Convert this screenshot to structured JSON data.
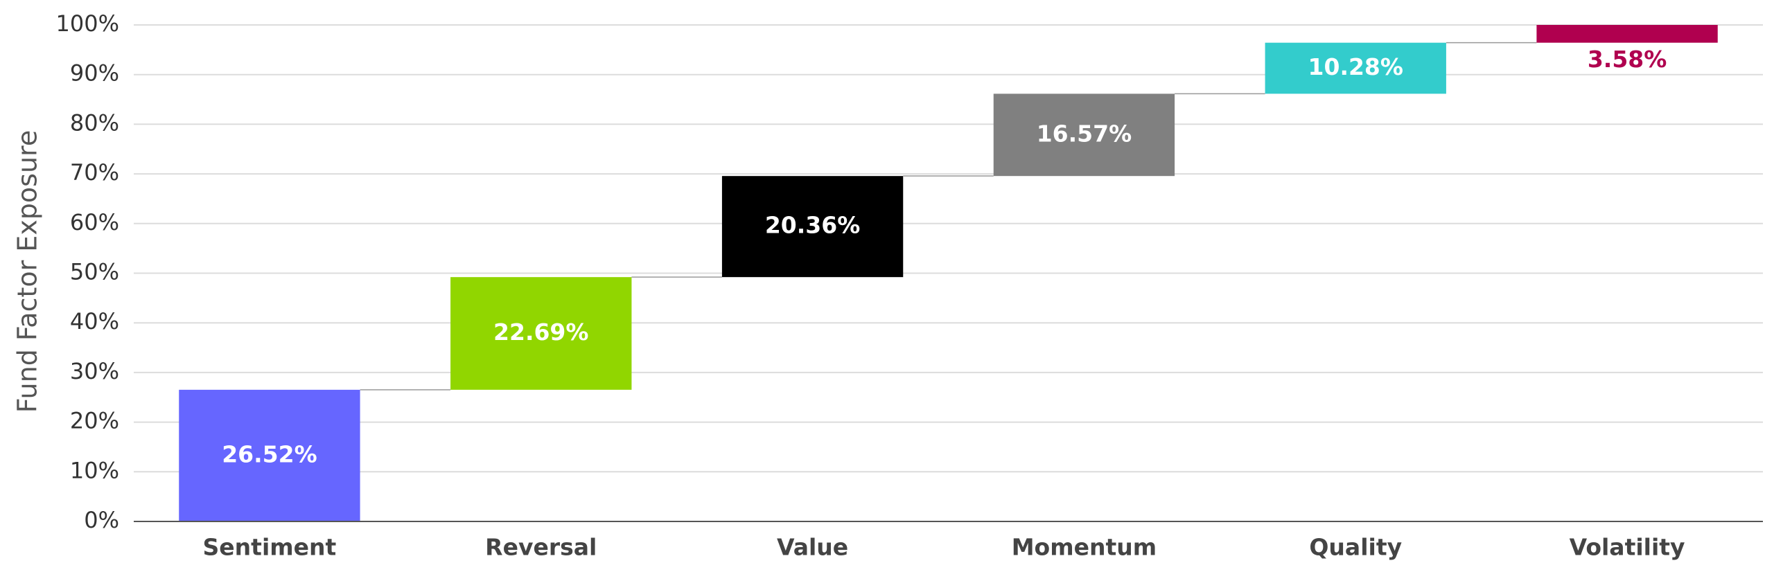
{
  "chart_data": {
    "type": "waterfall",
    "y_label": "Fund Factor Exposure",
    "categories": [
      "Sentiment",
      "Reversal",
      "Value",
      "Momentum",
      "Quality",
      "Volatility"
    ],
    "values": [
      26.52,
      22.69,
      20.36,
      16.57,
      10.28,
      3.58
    ],
    "value_labels": [
      "26.52%",
      "22.69%",
      "20.36%",
      "16.57%",
      "10.28%",
      "3.58%"
    ],
    "colors": [
      "#6666ff",
      "#91d600",
      "#000000",
      "#808080",
      "#33cccc",
      "#b0004f"
    ],
    "ylim": [
      0,
      100
    ],
    "yticks": [
      {
        "value": 0,
        "label": "0%"
      },
      {
        "value": 10,
        "label": "10%"
      },
      {
        "value": 20,
        "label": "20%"
      },
      {
        "value": 30,
        "label": "30%"
      },
      {
        "value": 40,
        "label": "40%"
      },
      {
        "value": 50,
        "label": "50%"
      },
      {
        "value": 60,
        "label": "60%"
      },
      {
        "value": 70,
        "label": "70%"
      },
      {
        "value": 80,
        "label": "80%"
      },
      {
        "value": 90,
        "label": "90%"
      },
      {
        "value": 100,
        "label": "100%"
      }
    ],
    "grid": true
  }
}
